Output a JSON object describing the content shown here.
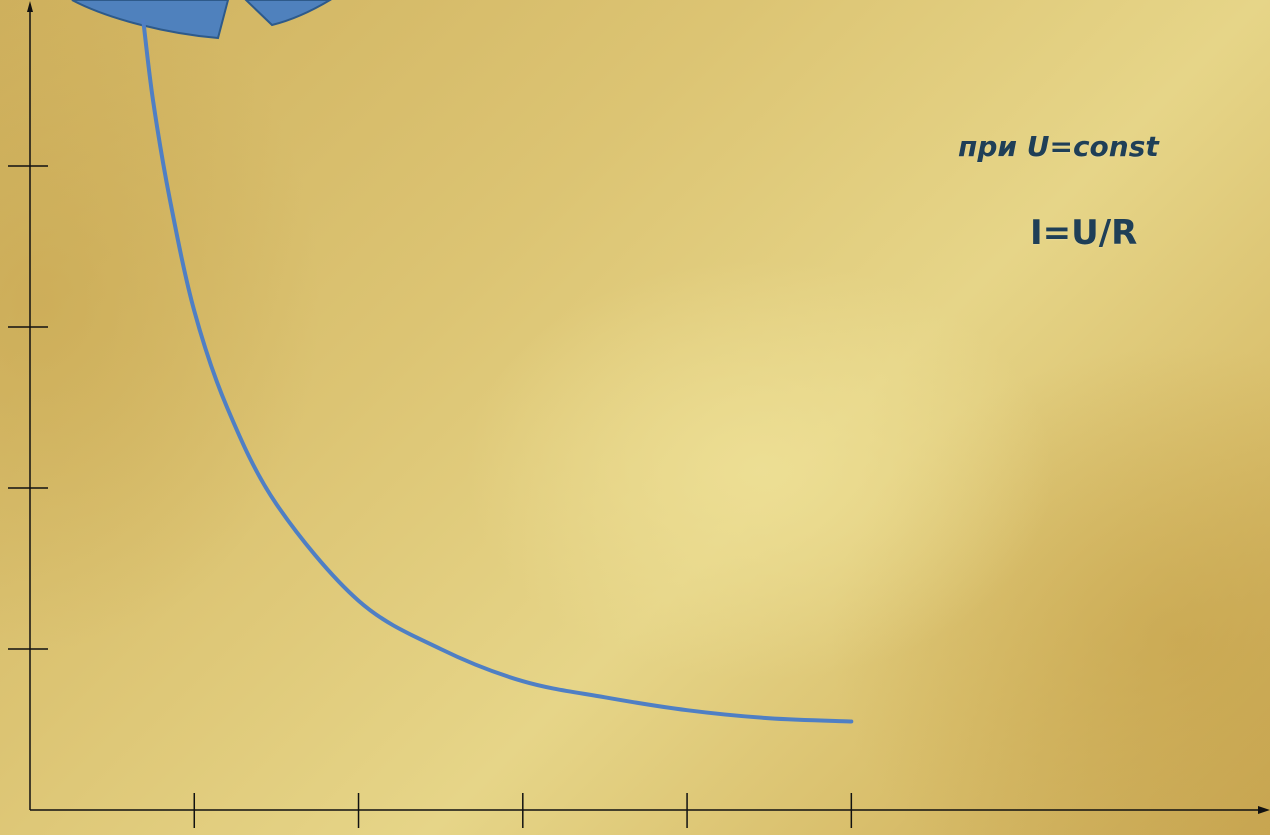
{
  "annotations": {
    "condition": "при U=const",
    "formula": "I=U/R"
  },
  "colors": {
    "background": "#d9bf6c",
    "curve": "#4f7fc4",
    "axes": "#111111",
    "decoration_fill": "#4f81bd",
    "decoration_stroke": "#2e5a8a",
    "text": "#1f3f57"
  },
  "chart_data": {
    "type": "line",
    "title": "",
    "xlabel": "",
    "ylabel": "",
    "x_ticks": [
      1,
      2,
      3,
      4,
      5
    ],
    "y_ticks": [
      1,
      2,
      3,
      4
    ],
    "xlim": [
      0,
      7.5
    ],
    "ylim": [
      0,
      5
    ],
    "series": [
      {
        "function": "I=U/R",
        "x": [
          0.69,
          0.75,
          0.85,
          1.0,
          1.2,
          1.5,
          2.0,
          2.5,
          3.0,
          3.5,
          4.0,
          4.5,
          5.0
        ],
        "y": [
          4.9,
          4.4,
          3.8,
          3.1,
          2.5,
          1.9,
          1.3,
          1.0,
          0.8,
          0.7,
          0.62,
          0.57,
          0.55
        ]
      }
    ],
    "grid": false,
    "legend": "none"
  }
}
